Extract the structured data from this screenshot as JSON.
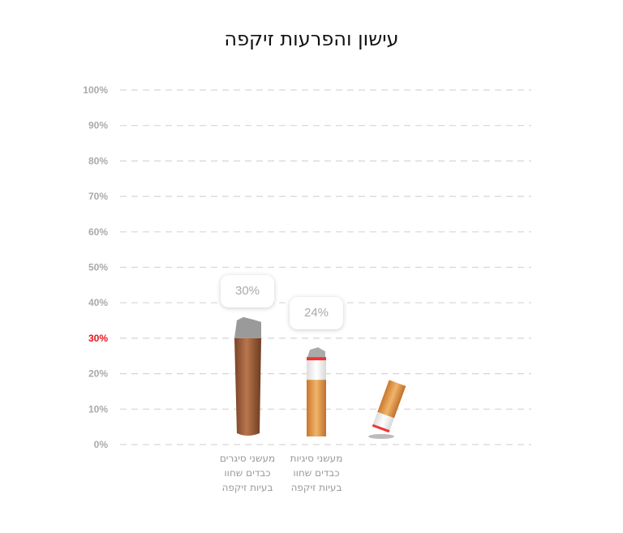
{
  "chart_data": {
    "type": "bar",
    "title": "עישון והפרעות זיקפה",
    "categories": [
      "מעשני סיגרים כבדים שחוו בעיות זיקפה",
      "מעשני סיגיות כבדים שחוו בעיות זיקפה",
      ""
    ],
    "category_lines": [
      [
        "מעשני סיגרים",
        "כבדים שחוו",
        "בעיות זיקפה"
      ],
      [
        "מעשני סיגיות",
        "כבדים שחוו",
        "בעיות זיקפה"
      ],
      []
    ],
    "values": [
      30,
      24,
      null
    ],
    "data_labels": [
      "30%",
      "24%",
      ""
    ],
    "bar_styles": [
      "cigar",
      "cigarette",
      "cigarette-butt"
    ],
    "ylim": [
      0,
      100
    ],
    "yticks": [
      "0%",
      "10%",
      "20%",
      "30%",
      "40%",
      "50%",
      "60%",
      "70%",
      "80%",
      "90%",
      "100%"
    ],
    "highlighted_tick": "30%",
    "highlight_color": "#e8111b",
    "grid": true,
    "xlabel": "",
    "ylabel": ""
  }
}
